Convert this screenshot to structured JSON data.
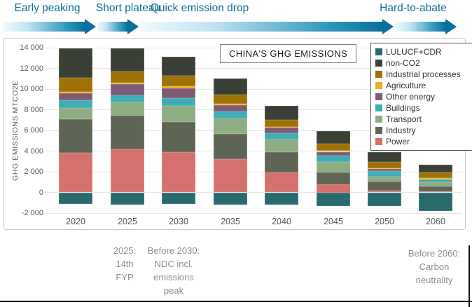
{
  "phases": [
    {
      "label": "Early peaking"
    },
    {
      "label": "Short plateau"
    },
    {
      "label": "Quick emission drop"
    },
    {
      "label": "Hard-to-abate"
    }
  ],
  "arrow_colors": {
    "light": "#f2fafd",
    "dark": "#0a6f9b"
  },
  "chart": {
    "title": "CHINA'S GHG EMISSIONS",
    "y_axis_title": "GHG EMISSIONS MTCO2E",
    "y_ticks": [
      {
        "label": "14 000",
        "value": 14000
      },
      {
        "label": "12 000",
        "value": 12000
      },
      {
        "label": "10 000",
        "value": 10000
      },
      {
        "label": "8 000",
        "value": 8000
      },
      {
        "label": "6 000",
        "value": 6000
      },
      {
        "label": "4 000",
        "value": 4000
      },
      {
        "label": "2 000",
        "value": 2000
      },
      {
        "label": "0",
        "value": 0
      },
      {
        "label": "-2 000",
        "value": -2000
      }
    ]
  },
  "chart_data": {
    "type": "bar",
    "stacked": true,
    "title": "CHINA'S GHG EMISSIONS",
    "ylabel": "GHG EMISSIONS MTCO2E",
    "ylim": [
      -2000,
      14000
    ],
    "grid": true,
    "legend_position": "top-right",
    "categories": [
      "2020",
      "2025",
      "2030",
      "2035",
      "2040",
      "2045",
      "2050",
      "2060"
    ],
    "series": [
      {
        "name": "Power",
        "color": "#d4716c",
        "values": [
          3800,
          4150,
          3900,
          3200,
          1950,
          750,
          150,
          100
        ]
      },
      {
        "name": "Industry",
        "color": "#5e6554",
        "values": [
          3300,
          3250,
          2900,
          2450,
          1950,
          1150,
          870,
          450
        ]
      },
      {
        "name": "Transport",
        "color": "#8ead82",
        "values": [
          1100,
          1300,
          1600,
          1500,
          1200,
          1050,
          530,
          450
        ]
      },
      {
        "name": "Buildings",
        "color": "#3fadb3",
        "values": [
          700,
          700,
          750,
          700,
          600,
          590,
          540,
          250
        ]
      },
      {
        "name": "Other energy",
        "color": "#7d5a75",
        "values": [
          700,
          1050,
          950,
          600,
          550,
          390,
          160,
          0
        ]
      },
      {
        "name": "Agriculture",
        "color": "#f0ad1f",
        "values": [
          150,
          150,
          150,
          100,
          100,
          70,
          60,
          120
        ]
      },
      {
        "name": "Industrial processes",
        "color": "#9e7208",
        "values": [
          1350,
          1070,
          1050,
          900,
          650,
          700,
          650,
          530
        ]
      },
      {
        "name": "non-CO2",
        "color": "#3a4035",
        "values": [
          2800,
          2230,
          1800,
          1550,
          1400,
          1200,
          950,
          750
        ]
      },
      {
        "name": "LULUCF+CDR",
        "color": "#296a6e",
        "values": [
          -1100,
          -1200,
          -1150,
          -1200,
          -1200,
          -1300,
          -1350,
          -1800
        ]
      }
    ]
  },
  "legend": {
    "items": [
      {
        "label": "LULUCF+CDR",
        "color": "#296a6e"
      },
      {
        "label": "non-CO2",
        "color": "#3a4035"
      },
      {
        "label": "Industrial processes",
        "color": "#9e7208"
      },
      {
        "label": "Agriculture",
        "color": "#f0ad1f"
      },
      {
        "label": "Other energy",
        "color": "#7d5a75"
      },
      {
        "label": "Buildings",
        "color": "#3fadb3"
      },
      {
        "label": "Transport",
        "color": "#8ead82"
      },
      {
        "label": "Industry",
        "color": "#5e6554"
      },
      {
        "label": "Power",
        "color": "#d4716c"
      }
    ]
  },
  "annotations": [
    {
      "lines": [
        "2025:",
        "14th",
        "FYP"
      ]
    },
    {
      "lines": [
        "Before 2030:",
        "NDC incl.",
        "emissions",
        "peak"
      ]
    },
    {
      "lines": [
        "Before 2060:",
        "Carbon",
        "neutrality"
      ]
    }
  ]
}
